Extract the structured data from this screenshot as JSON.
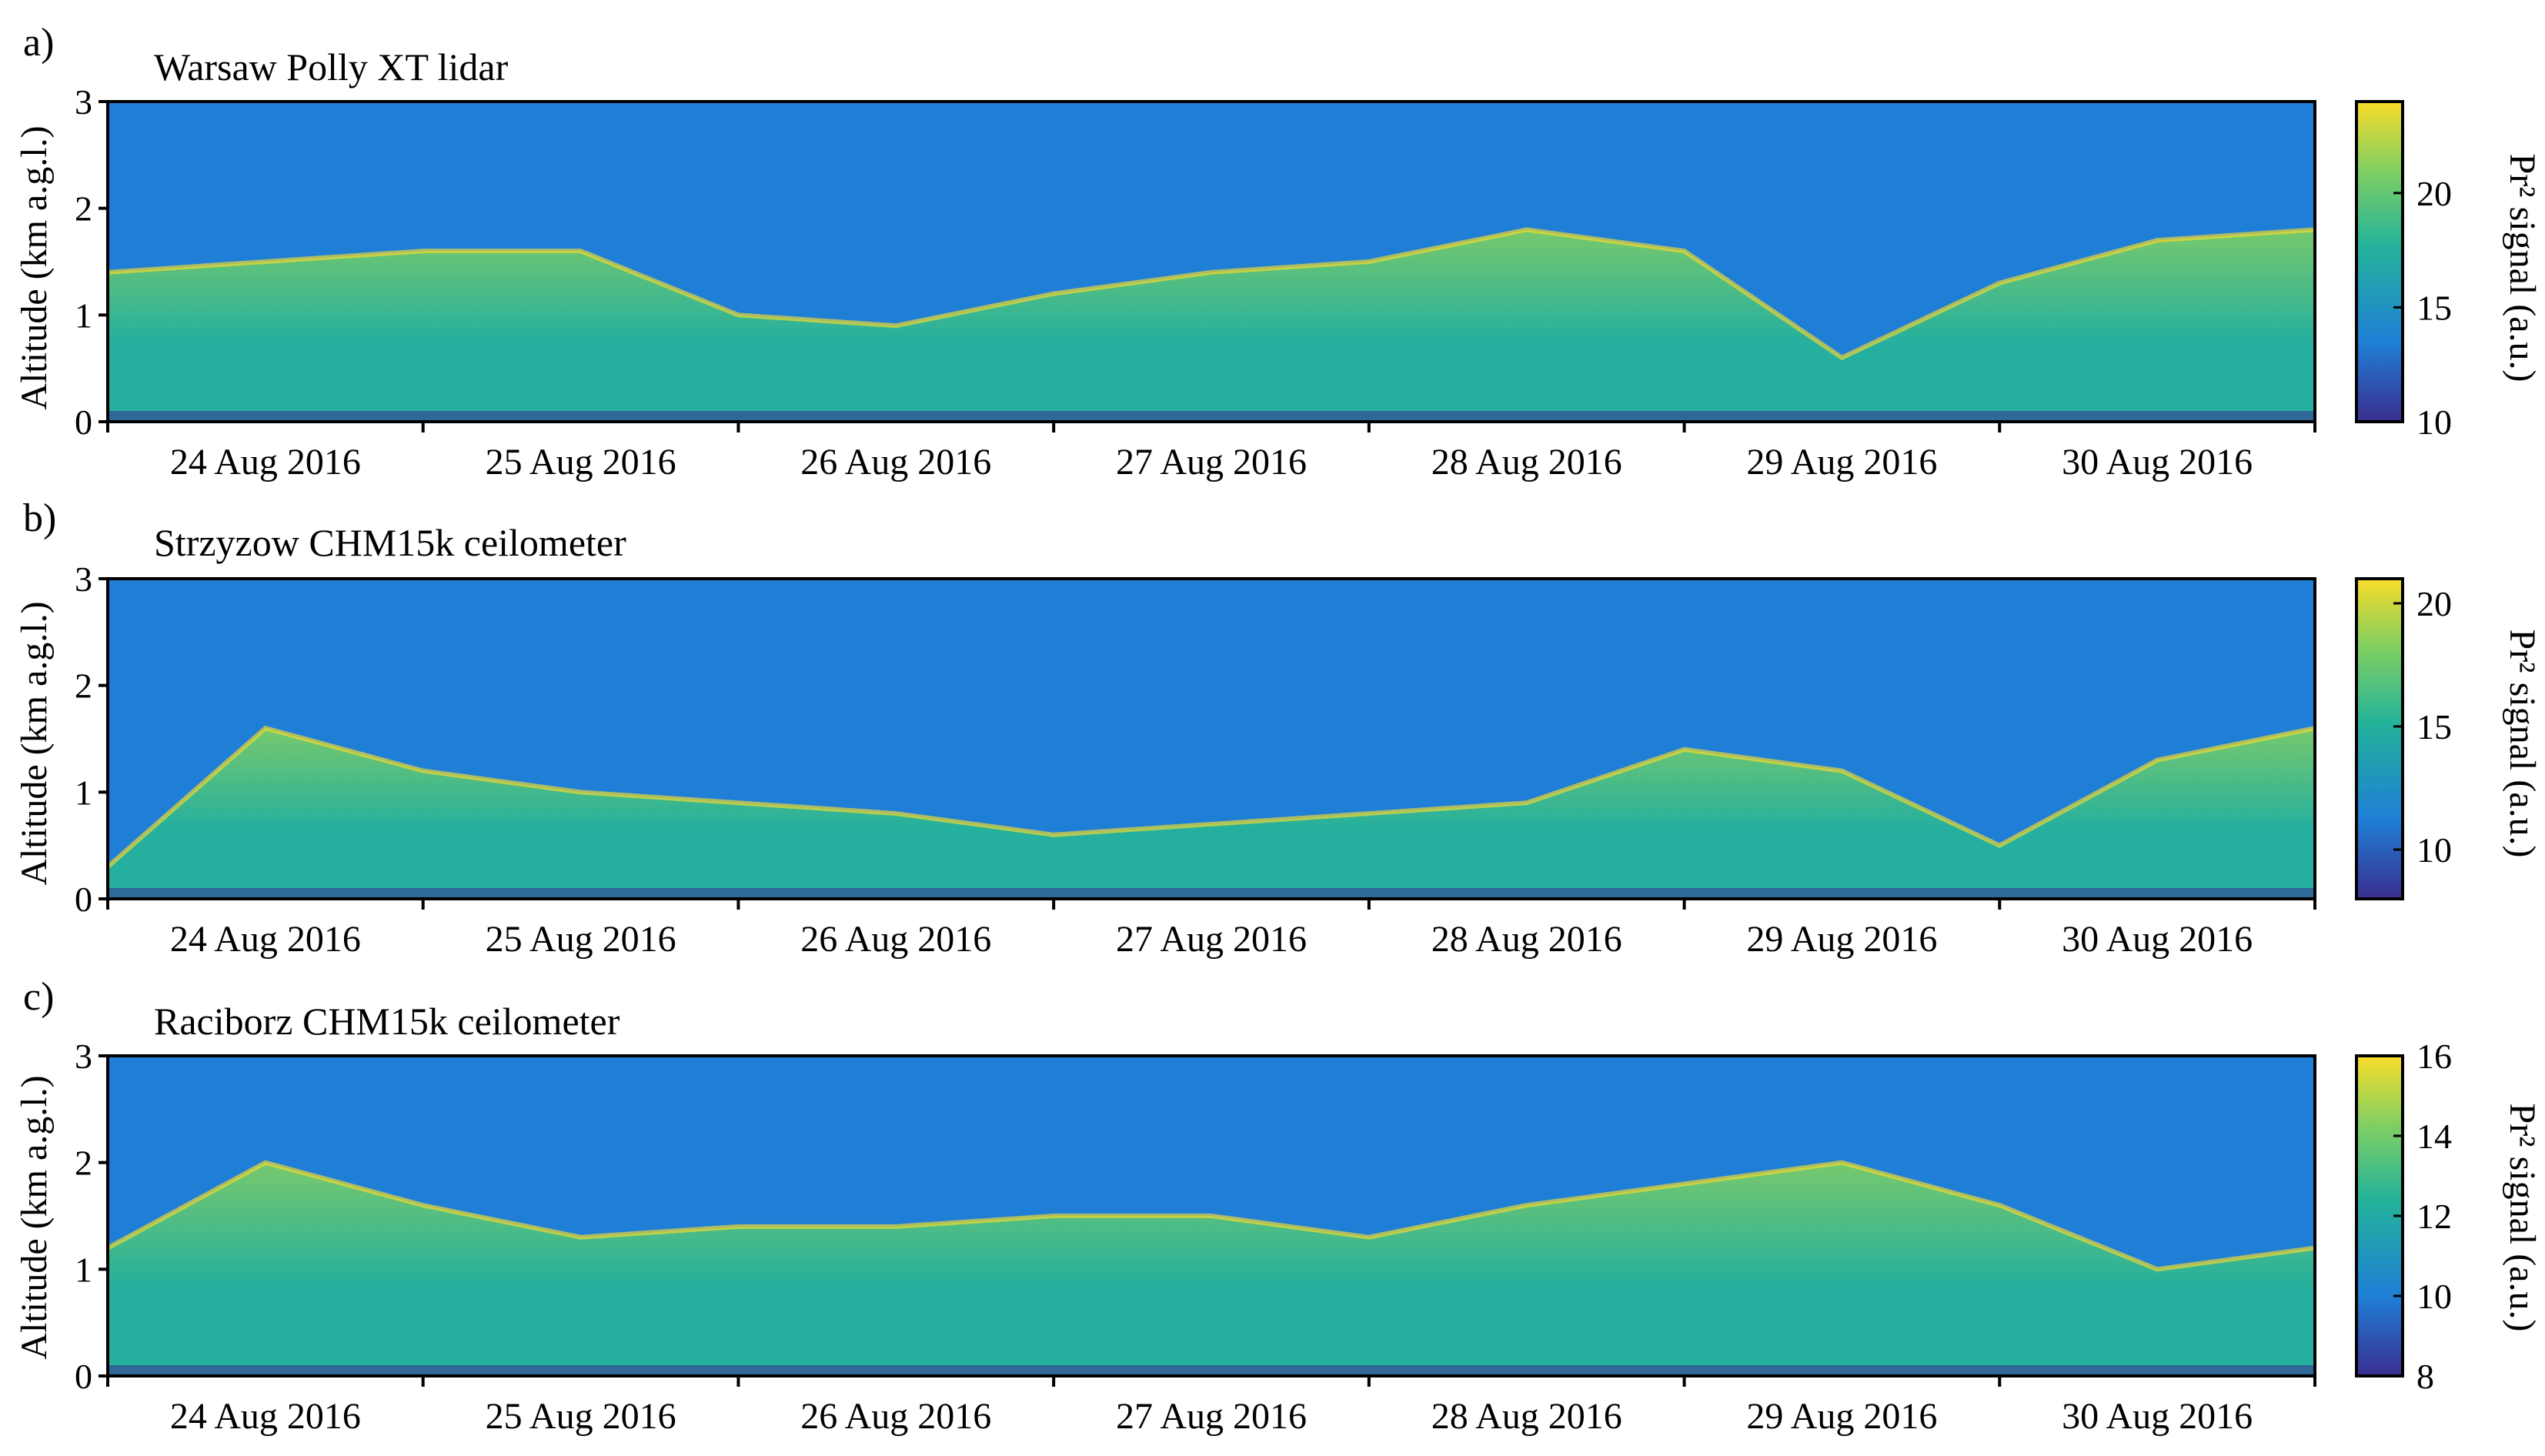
{
  "chart_data": [
    {
      "type": "heatmap",
      "panel_label": "a)",
      "title": "Warsaw Polly XT lidar",
      "ylabel": "Altitude (km a.g.l.)",
      "ylim": [
        0,
        3
      ],
      "y_ticks": [
        "0",
        "1",
        "2",
        "3"
      ],
      "x_ticks": [
        "24 Aug 2016",
        "25 Aug 2016",
        "26 Aug 2016",
        "27 Aug 2016",
        "28 Aug 2016",
        "29 Aug 2016",
        "30 Aug 2016"
      ],
      "colorbar": {
        "label": "Pr² signal (a.u.)",
        "range": [
          10,
          24
        ],
        "ticks": [
          "10",
          "15",
          "20"
        ],
        "tick_values": [
          10,
          15,
          20
        ]
      },
      "colors": {
        "low": "#3a2e8f",
        "mid_low": "#1f7fd6",
        "mid": "#24b39a",
        "mid_high": "#7ecf63",
        "high": "#f9dc2a"
      },
      "layers": [
        {
          "name": "boundary layer top",
          "x_day": [
            0,
            0.5,
            1,
            1.5,
            2,
            2.5,
            3,
            3.5,
            4,
            4.5,
            5,
            5.5,
            6,
            6.5,
            7
          ],
          "top_km": [
            1.4,
            1.5,
            1.6,
            1.6,
            1.0,
            0.9,
            1.2,
            1.4,
            1.5,
            1.8,
            1.6,
            0.6,
            1.3,
            1.7,
            1.8
          ]
        }
      ]
    },
    {
      "type": "heatmap",
      "panel_label": "b)",
      "title": "Strzyzow CHM15k ceilometer",
      "ylabel": "Altitude (km a.g.l.)",
      "ylim": [
        0,
        3
      ],
      "y_ticks": [
        "0",
        "1",
        "2",
        "3"
      ],
      "x_ticks": [
        "24 Aug 2016",
        "25 Aug 2016",
        "26 Aug 2016",
        "27 Aug 2016",
        "28 Aug 2016",
        "29 Aug 2016",
        "30 Aug 2016"
      ],
      "colorbar": {
        "label": "Pr² signal (a.u.)",
        "range": [
          8,
          21
        ],
        "ticks": [
          "10",
          "15",
          "20"
        ],
        "tick_values": [
          10,
          15,
          20
        ]
      },
      "colors": {
        "low": "#3a2e8f",
        "mid_low": "#1f7fd6",
        "mid": "#24b39a",
        "mid_high": "#7ecf63",
        "high": "#f9dc2a"
      },
      "layers": [
        {
          "name": "boundary layer top",
          "x_day": [
            0,
            0.5,
            1,
            1.5,
            2,
            2.5,
            3,
            3.5,
            4,
            4.5,
            5,
            5.5,
            6,
            6.5,
            7
          ],
          "top_km": [
            0.3,
            1.6,
            1.2,
            1.0,
            0.9,
            0.8,
            0.6,
            0.7,
            0.8,
            0.9,
            1.4,
            1.2,
            0.5,
            1.3,
            1.6
          ]
        }
      ]
    },
    {
      "type": "heatmap",
      "panel_label": "c)",
      "title": "Raciborz CHM15k ceilometer",
      "ylabel": "Altitude (km a.g.l.)",
      "ylim": [
        0,
        3
      ],
      "y_ticks": [
        "0",
        "1",
        "2",
        "3"
      ],
      "x_ticks": [
        "24 Aug 2016",
        "25 Aug 2016",
        "26 Aug 2016",
        "27 Aug 2016",
        "28 Aug 2016",
        "29 Aug 2016",
        "30 Aug 2016"
      ],
      "colorbar": {
        "label": "Pr² signal (a.u.)",
        "range": [
          8,
          16
        ],
        "ticks": [
          "8",
          "10",
          "12",
          "14",
          "16"
        ],
        "tick_values": [
          8,
          10,
          12,
          14,
          16
        ]
      },
      "colors": {
        "low": "#3a2e8f",
        "mid_low": "#1f7fd6",
        "mid": "#24b39a",
        "mid_high": "#7ecf63",
        "high": "#f9dc2a"
      },
      "layers": [
        {
          "name": "boundary layer top",
          "x_day": [
            0,
            0.5,
            1,
            1.5,
            2,
            2.5,
            3,
            3.5,
            4,
            4.5,
            5,
            5.5,
            6,
            6.5,
            7
          ],
          "top_km": [
            1.2,
            2.0,
            1.6,
            1.3,
            1.4,
            1.4,
            1.5,
            1.5,
            1.3,
            1.6,
            1.8,
            2.0,
            1.6,
            1.0,
            1.2
          ]
        }
      ]
    }
  ]
}
